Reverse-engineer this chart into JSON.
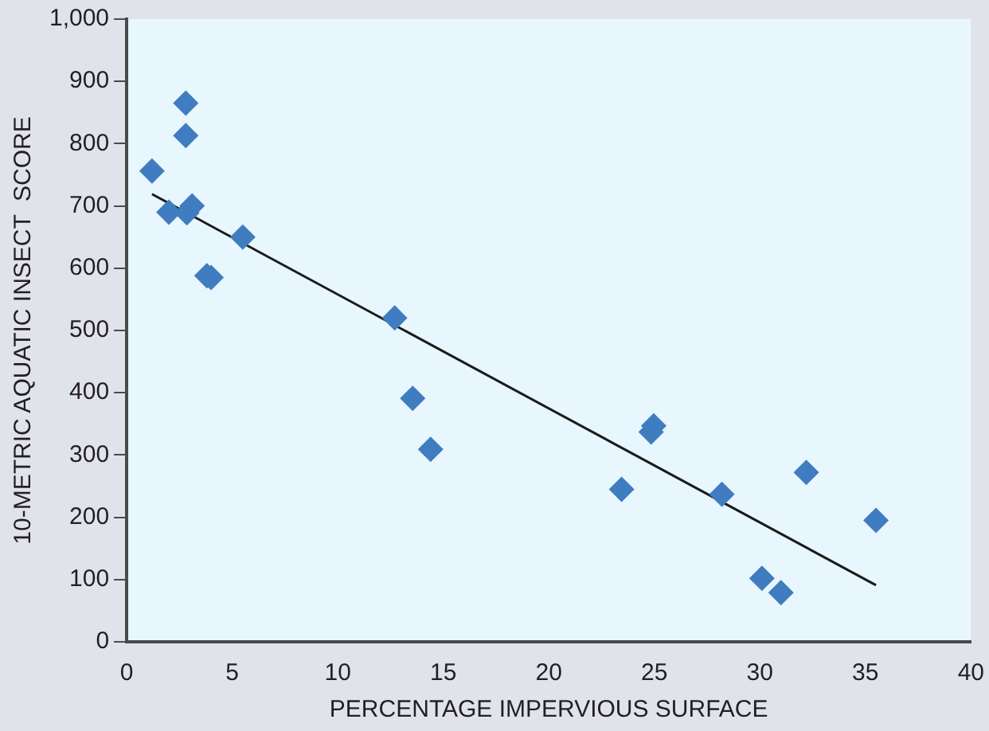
{
  "chart_data": {
    "type": "scatter",
    "xlabel": "PERCENTAGE IMPERVIOUS SURFACE",
    "ylabel": "10-METRIC AQUATIC INSECT  SCORE",
    "xlim": [
      0,
      40
    ],
    "xticks": [
      0,
      5,
      10,
      15,
      20,
      25,
      30,
      35,
      40
    ],
    "ylim": [
      0,
      1000
    ],
    "yticks": [
      0,
      100,
      200,
      300,
      400,
      500,
      600,
      700,
      800,
      900,
      {
        "value": 1000,
        "label": "1,000"
      }
    ],
    "grid": false,
    "legend": false,
    "marker": "diamond",
    "series": [
      {
        "type": "scatter",
        "color": "#3f7cc0",
        "x": [
          1.2,
          2.0,
          2.8,
          2.8,
          2.85,
          3.1,
          3.8,
          4.0,
          5.5,
          12.7,
          13.55,
          14.4,
          23.45,
          24.85,
          24.97,
          28.2,
          30.1,
          31.0,
          32.2,
          35.5
        ],
        "values": [
          756,
          690,
          865,
          813,
          689,
          700,
          588,
          585,
          650,
          520,
          391,
          309,
          245,
          337,
          347,
          237,
          102,
          79,
          272,
          195
        ]
      },
      {
        "type": "line",
        "color": "#1a1a1a",
        "marker": "none",
        "x": [
          1.2,
          35.5
        ],
        "values": [
          719,
          91
        ]
      }
    ]
  }
}
